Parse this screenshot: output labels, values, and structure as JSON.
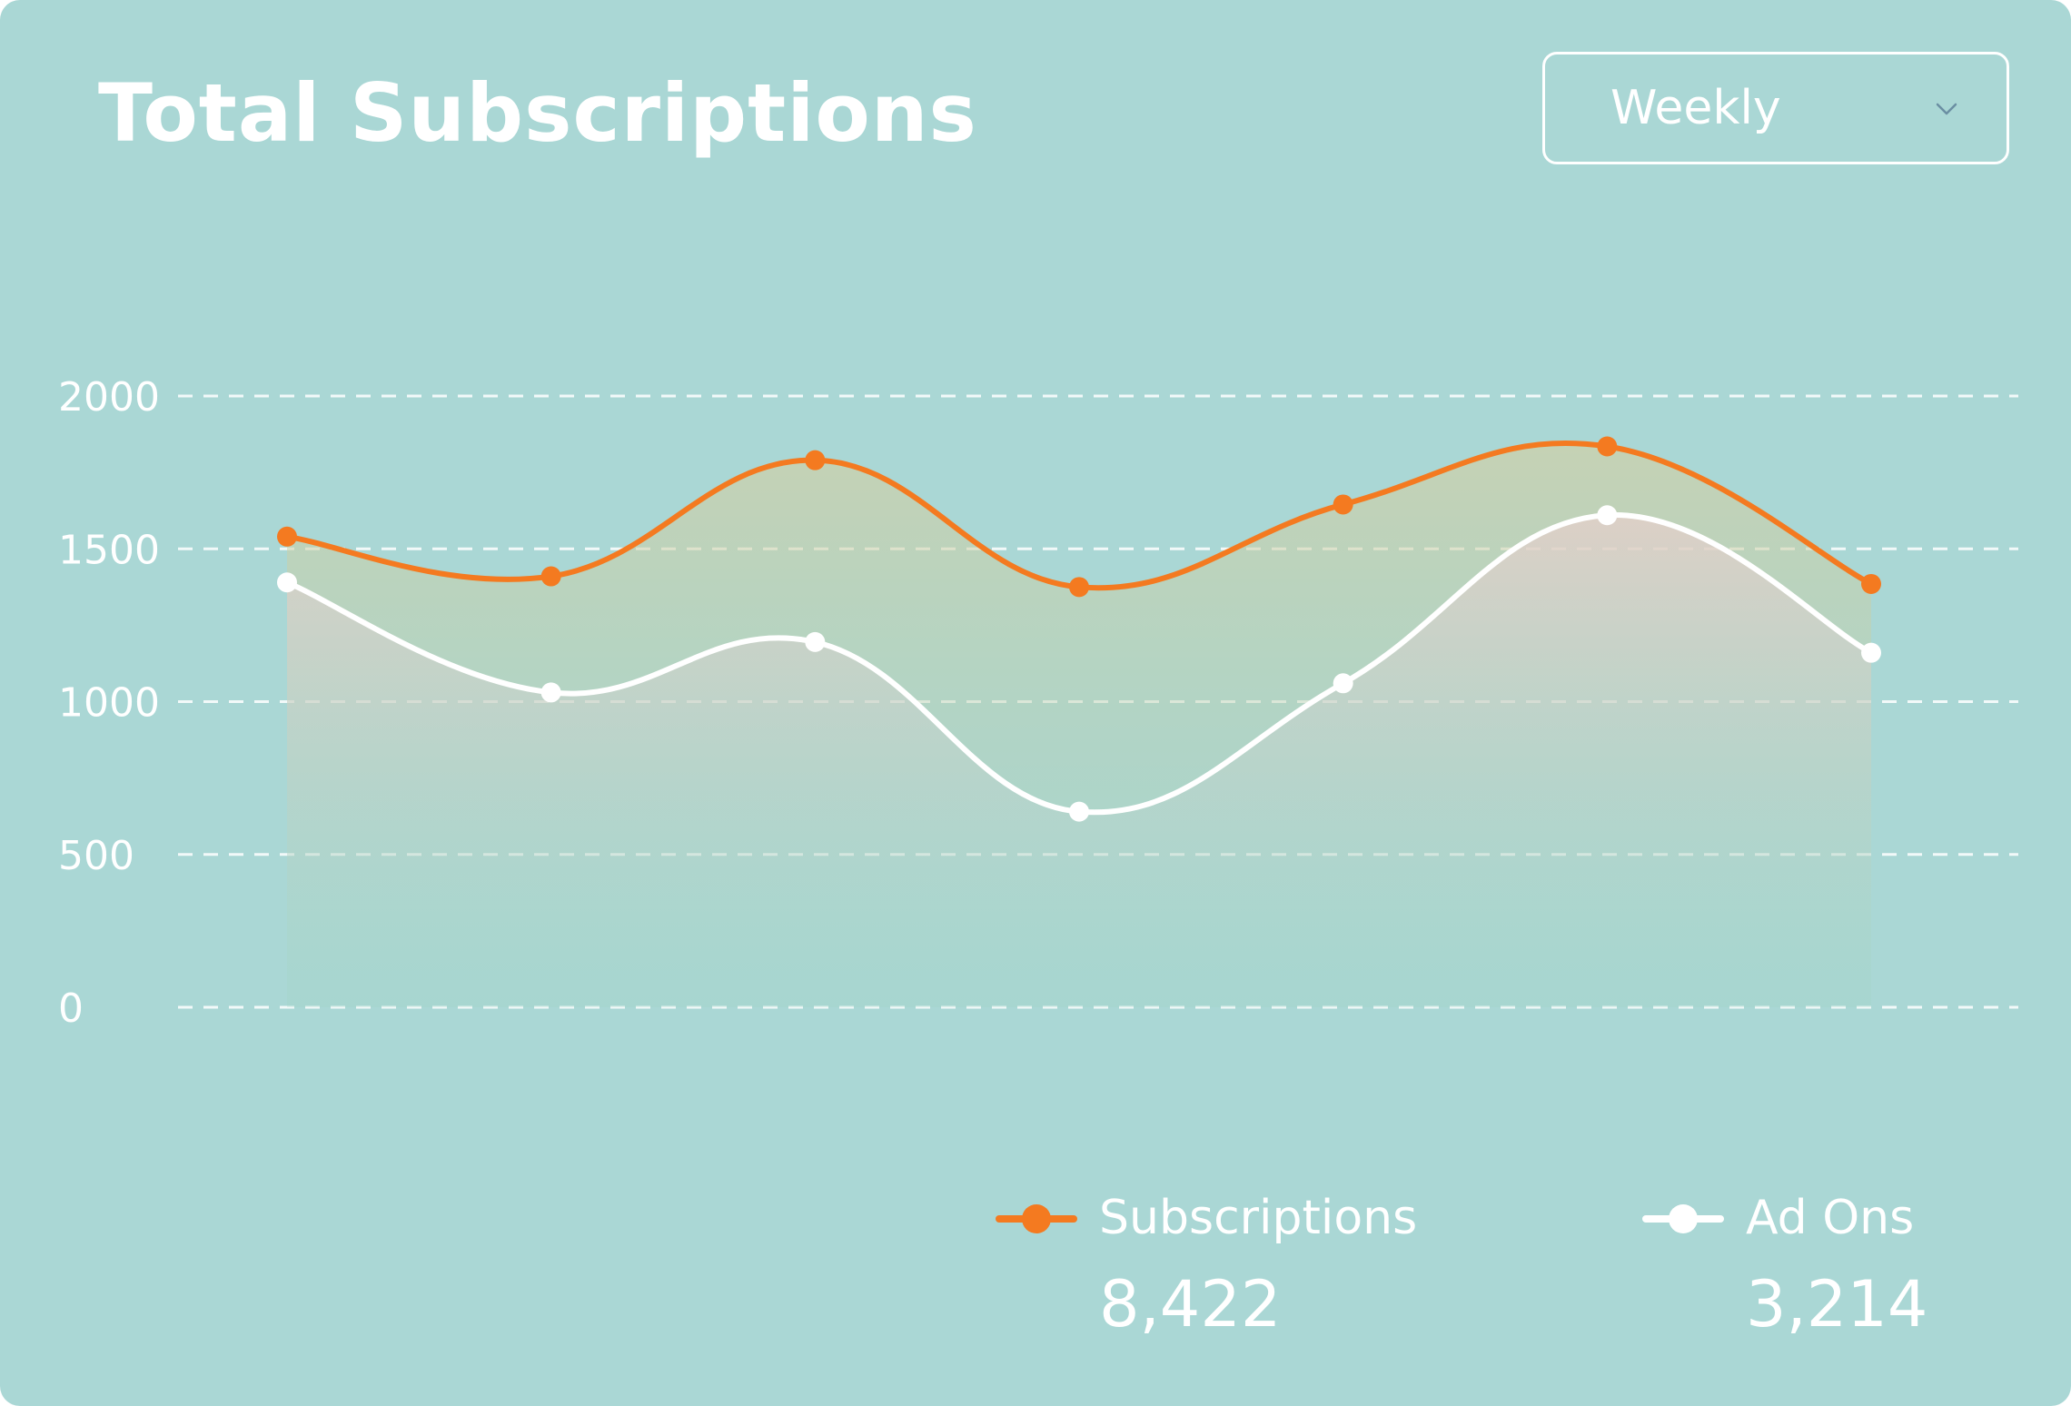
{
  "card": {
    "title": "Total Subscriptions",
    "period_select": {
      "value": "Weekly",
      "icon": "chevron-down-icon"
    }
  },
  "colors": {
    "background": "#aad7d5",
    "subscriptions": "#f47a20",
    "ad_ons": "#ffffff",
    "text": "#ffffff",
    "select_chevron": "#6b8fa3"
  },
  "legend": {
    "subscriptions": {
      "label": "Subscriptions",
      "total": "8,422"
    },
    "ad_ons": {
      "label": "Ad Ons",
      "total": "3,214"
    }
  },
  "chart_data": {
    "type": "area",
    "title": "Total Subscriptions",
    "xlabel": "",
    "ylabel": "",
    "ylim": [
      0,
      2000
    ],
    "yticks": [
      "0",
      "500",
      "1000",
      "1500",
      "2000"
    ],
    "grid": true,
    "grid_style": "dashed horizontal",
    "smooth": true,
    "legend_position": "bottom-right",
    "x": [
      1,
      2,
      3,
      4,
      5,
      6,
      7
    ],
    "series": [
      {
        "name": "Subscriptions",
        "color": "#f47a20",
        "values": [
          1540,
          1410,
          1790,
          1375,
          1645,
          1835,
          1385
        ]
      },
      {
        "name": "Ad Ons",
        "color": "#ffffff",
        "values": [
          1390,
          1030,
          1195,
          640,
          1060,
          1610,
          1160
        ]
      }
    ]
  }
}
